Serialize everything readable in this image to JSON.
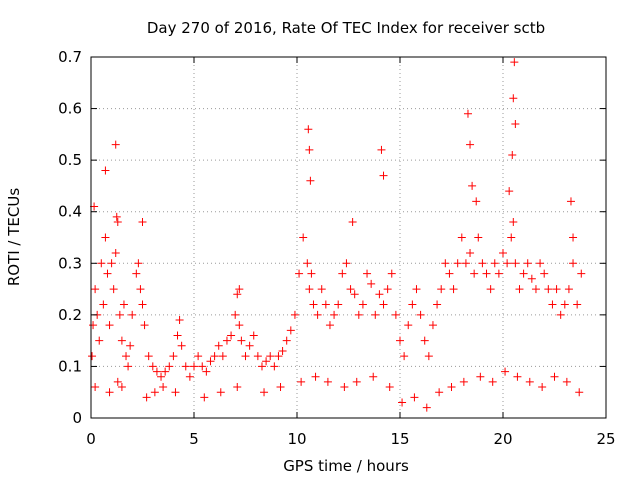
{
  "chart_data": {
    "type": "scatter",
    "title": "Day 270 of 2016, Rate Of TEC Index for receiver sctb",
    "xlabel": "GPS time / hours",
    "ylabel": "ROTI / TECUs",
    "xlim": [
      0,
      25
    ],
    "ylim": [
      0,
      0.7
    ],
    "xticks": [
      0,
      5,
      10,
      15,
      20,
      25
    ],
    "yticks": [
      0,
      0.1,
      0.2,
      0.3,
      0.4,
      0.5,
      0.6,
      0.7
    ],
    "xtick_labels": [
      "0",
      "5",
      "10",
      "15",
      "20",
      "25"
    ],
    "ytick_labels": [
      "0",
      "0.1",
      "0.2",
      "0.3",
      "0.4",
      "0.5",
      "0.6",
      "0.7"
    ],
    "grid": true,
    "marker": "+",
    "color": "#ff0000",
    "series": [
      {
        "name": "ROTI",
        "x": [
          0.05,
          0.1,
          0.2,
          0.3,
          0.4,
          0.5,
          0.6,
          0.7,
          0.8,
          0.9,
          1.0,
          1.1,
          1.2,
          1.3,
          1.4,
          1.5,
          1.6,
          1.7,
          1.8,
          1.9,
          2.0,
          2.2,
          2.3,
          2.4,
          2.5,
          2.6,
          2.8,
          3.0,
          3.2,
          3.4,
          3.6,
          3.8,
          4.0,
          4.2,
          4.4,
          4.6,
          4.8,
          5.0,
          5.2,
          5.4,
          5.6,
          5.8,
          6.0,
          6.2,
          6.4,
          6.6,
          6.8,
          7.0,
          7.1,
          7.2,
          7.3,
          7.5,
          7.7,
          7.9,
          8.1,
          8.3,
          8.5,
          8.7,
          8.9,
          9.1,
          9.3,
          9.5,
          9.7,
          9.9,
          10.1,
          10.3,
          10.5,
          10.6,
          10.7,
          10.8,
          11.0,
          11.2,
          11.4,
          11.6,
          11.8,
          12.0,
          12.2,
          12.4,
          12.6,
          12.8,
          13.0,
          13.2,
          13.4,
          13.6,
          13.8,
          14.0,
          14.2,
          14.4,
          14.6,
          14.8,
          15.0,
          15.2,
          15.4,
          15.6,
          15.8,
          16.0,
          16.2,
          16.4,
          16.6,
          16.8,
          17.0,
          17.2,
          17.4,
          17.6,
          17.8,
          18.0,
          18.2,
          18.4,
          18.6,
          18.8,
          19.0,
          19.2,
          19.4,
          19.6,
          19.8,
          20.0,
          20.2,
          20.4,
          20.5,
          20.6,
          20.8,
          21.0,
          21.2,
          21.4,
          21.6,
          21.8,
          22.0,
          22.2,
          22.4,
          22.6,
          22.8,
          23.0,
          23.2,
          23.4,
          23.6,
          23.8,
          0.15,
          0.7,
          1.2,
          1.25,
          2.5,
          4.3,
          7.2,
          10.55,
          10.6,
          10.65,
          12.7,
          14.1,
          14.2,
          18.3,
          18.4,
          18.5,
          18.7,
          20.3,
          20.45,
          20.5,
          20.55,
          20.6,
          23.3,
          23.4,
          0.2,
          0.9,
          1.3,
          1.5,
          2.7,
          3.1,
          3.5,
          4.1,
          5.5,
          6.3,
          7.1,
          8.4,
          9.2,
          10.2,
          10.9,
          11.5,
          12.3,
          12.9,
          13.7,
          14.5,
          15.1,
          15.7,
          16.3,
          16.9,
          17.5,
          18.1,
          18.9,
          19.5,
          20.1,
          20.7,
          21.3,
          21.9,
          22.5,
          23.1,
          23.7
        ],
        "y": [
          0.12,
          0.18,
          0.25,
          0.2,
          0.15,
          0.3,
          0.22,
          0.35,
          0.28,
          0.18,
          0.3,
          0.25,
          0.32,
          0.38,
          0.2,
          0.15,
          0.22,
          0.12,
          0.1,
          0.14,
          0.2,
          0.28,
          0.3,
          0.25,
          0.22,
          0.18,
          0.12,
          0.1,
          0.09,
          0.08,
          0.09,
          0.1,
          0.12,
          0.16,
          0.14,
          0.1,
          0.08,
          0.1,
          0.12,
          0.1,
          0.09,
          0.11,
          0.12,
          0.14,
          0.12,
          0.15,
          0.16,
          0.2,
          0.24,
          0.18,
          0.15,
          0.12,
          0.14,
          0.16,
          0.12,
          0.1,
          0.11,
          0.12,
          0.1,
          0.12,
          0.13,
          0.15,
          0.17,
          0.2,
          0.28,
          0.35,
          0.3,
          0.25,
          0.28,
          0.22,
          0.2,
          0.25,
          0.22,
          0.18,
          0.2,
          0.22,
          0.28,
          0.3,
          0.25,
          0.24,
          0.2,
          0.22,
          0.28,
          0.26,
          0.2,
          0.24,
          0.22,
          0.25,
          0.28,
          0.2,
          0.15,
          0.12,
          0.18,
          0.22,
          0.25,
          0.2,
          0.15,
          0.12,
          0.18,
          0.22,
          0.25,
          0.3,
          0.28,
          0.25,
          0.3,
          0.35,
          0.3,
          0.32,
          0.28,
          0.35,
          0.3,
          0.28,
          0.25,
          0.3,
          0.28,
          0.32,
          0.3,
          0.35,
          0.38,
          0.3,
          0.25,
          0.28,
          0.3,
          0.27,
          0.25,
          0.3,
          0.28,
          0.25,
          0.22,
          0.25,
          0.2,
          0.22,
          0.25,
          0.3,
          0.22,
          0.28,
          0.41,
          0.48,
          0.53,
          0.39,
          0.38,
          0.19,
          0.25,
          0.56,
          0.52,
          0.46,
          0.38,
          0.52,
          0.47,
          0.59,
          0.53,
          0.45,
          0.42,
          0.44,
          0.51,
          0.62,
          0.69,
          0.57,
          0.42,
          0.35,
          0.06,
          0.05,
          0.07,
          0.06,
          0.04,
          0.05,
          0.06,
          0.05,
          0.04,
          0.05,
          0.06,
          0.05,
          0.06,
          0.07,
          0.08,
          0.07,
          0.06,
          0.07,
          0.08,
          0.06,
          0.03,
          0.04,
          0.02,
          0.05,
          0.06,
          0.07,
          0.08,
          0.07,
          0.09,
          0.08,
          0.07,
          0.06,
          0.08,
          0.07,
          0.05
        ]
      }
    ]
  }
}
